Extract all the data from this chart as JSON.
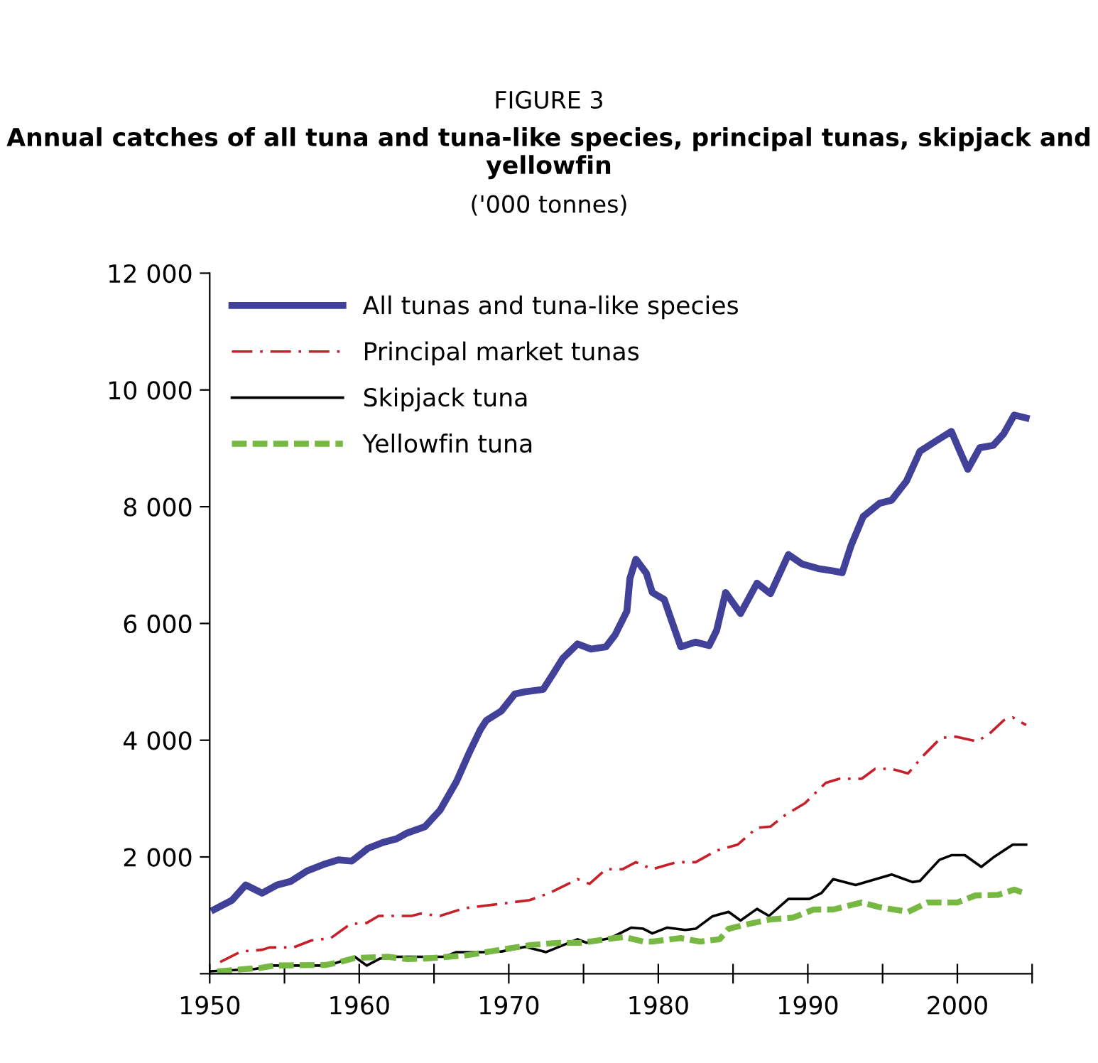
{
  "chart_data": {
    "type": "line",
    "title": "FIGURE 3",
    "subtitle": "Annual catches of all tuna and tuna-like species, principal tunas, skipjack and yellowfin",
    "annotations": [
      "('000 tonnes)"
    ],
    "xlim": [
      1950,
      2005
    ],
    "ylim": [
      0,
      12000
    ],
    "xticks": [
      1950,
      {
        "value": 1955,
        "label": null
      },
      1960,
      {
        "value": 1965,
        "label": null
      },
      1970,
      {
        "value": 1975,
        "label": null
      },
      1980,
      {
        "value": 1985,
        "label": null
      },
      1990,
      {
        "value": 1995,
        "label": null
      },
      2000,
      {
        "value": 2005,
        "label": null
      }
    ],
    "yticks": [
      {
        "value": 0,
        "label": null
      },
      {
        "value": 2000,
        "label": "2 000"
      },
      {
        "value": 4000,
        "label": "4 000"
      },
      {
        "value": 6000,
        "label": "6 000"
      },
      {
        "value": 8000,
        "label": "8 000"
      },
      {
        "value": 10000,
        "label": "10 000"
      },
      {
        "value": 12000,
        "label": "12 000"
      }
    ],
    "grid": false,
    "legend": "top left",
    "marker": "none",
    "series": [
      {
        "name": "All tunas and tuna-like species",
        "color": "#41419a",
        "line_style": "solid",
        "x": [
          1950.3,
          1951.5,
          1952.4,
          1953.5,
          1954.5,
          1955.4,
          1956.5,
          1957.6,
          1958.6,
          1959.5,
          1960.6,
          1961.6,
          1962.5,
          1963.2,
          1964.4,
          1965.4,
          1966.5,
          1967.4,
          1968.1,
          1968.5,
          1969.5,
          1970.4,
          1971.1,
          1972.3,
          1973,
          1973.6,
          1974.6,
          1975.5,
          1976.5,
          1977.1,
          1977.9,
          1978.1,
          1978.5,
          1979.2,
          1979.6,
          1980.4,
          1980.9,
          1981.5,
          1982.5,
          1983.4,
          1983.9,
          1984.5,
          1985.5,
          1986.6,
          1987.5,
          1988.7,
          1989.6,
          1990.7,
          1991.7,
          1992.3,
          1992.9,
          1993.7,
          1994.8,
          1995.6,
          1996.6,
          1997.5,
          1998.6,
          1999.6,
          2000,
          2000.7,
          2001.5,
          2002.4,
          2003.1,
          2003.8,
          2004.6
        ],
        "values": [
          1100,
          1260,
          1520,
          1380,
          1520,
          1580,
          1760,
          1870,
          1950,
          1930,
          2150,
          2250,
          2310,
          2410,
          2520,
          2800,
          3290,
          3810,
          4180,
          4340,
          4500,
          4790,
          4830,
          4870,
          5150,
          5400,
          5650,
          5560,
          5600,
          5800,
          6210,
          6770,
          7100,
          6860,
          6530,
          6410,
          6040,
          5600,
          5680,
          5620,
          5880,
          6530,
          6170,
          6690,
          6510,
          7180,
          7020,
          6940,
          6900,
          6870,
          7340,
          7830,
          8060,
          8110,
          8440,
          8950,
          9130,
          9290,
          9050,
          8640,
          9010,
          9050,
          9250,
          9570,
          9520
        ]
      },
      {
        "name": "Principal market tunas",
        "color": "#c8202a",
        "line_style": "dashdot",
        "x": [
          1950.7,
          1952.1,
          1953.5,
          1954,
          1955.6,
          1956.8,
          1958.1,
          1959.4,
          1960.5,
          1961.3,
          1963.5,
          1964.1,
          1965.4,
          1967,
          1968.9,
          1971.4,
          1972.7,
          1974.6,
          1975.4,
          1976.5,
          1977.6,
          1978.5,
          1979.6,
          1981.2,
          1982.5,
          1983.9,
          1985.3,
          1986.6,
          1987.5,
          1988.5,
          1989.8,
          1991.2,
          1992.1,
          1993.6,
          1994.5,
          1995.6,
          1996.7,
          1997.7,
          1998.9,
          1999.9,
          2001.3,
          2002.1,
          2003.1,
          2003.7,
          2004.6
        ],
        "values": [
          200,
          380,
          410,
          450,
          450,
          570,
          610,
          850,
          870,
          990,
          990,
          1030,
          990,
          1120,
          1180,
          1260,
          1380,
          1620,
          1540,
          1790,
          1790,
          1910,
          1790,
          1910,
          1910,
          2110,
          2210,
          2500,
          2520,
          2720,
          2920,
          3270,
          3340,
          3340,
          3510,
          3510,
          3430,
          3730,
          4040,
          4060,
          3980,
          4100,
          4340,
          4390,
          4260
        ]
      },
      {
        "name": "Skipjack tuna",
        "color": "#000000",
        "line_style": "solid",
        "x": [
          1950,
          1953,
          1954.3,
          1957.5,
          1958.4,
          1959.7,
          1960.5,
          1961.4,
          1962.5,
          1965.7,
          1966.5,
          1968.2,
          1969.5,
          1971.1,
          1972.5,
          1974.6,
          1975.2,
          1976.8,
          1978.2,
          1979,
          1979.6,
          1980.6,
          1981.8,
          1982.5,
          1983.6,
          1984.7,
          1985.5,
          1986.6,
          1987.4,
          1988.7,
          1990.1,
          1990.9,
          1991.7,
          1993.2,
          1995.6,
          1997,
          1997.5,
          1998.8,
          1999.6,
          2000.5,
          2001.6,
          2002.4,
          2003.7,
          2004.6
        ],
        "values": [
          40,
          80,
          140,
          140,
          180,
          290,
          140,
          260,
          290,
          290,
          370,
          370,
          380,
          460,
          370,
          590,
          530,
          610,
          790,
          770,
          690,
          790,
          750,
          770,
          980,
          1060,
          910,
          1110,
          990,
          1280,
          1280,
          1380,
          1620,
          1520,
          1700,
          1570,
          1590,
          1950,
          2030,
          2030,
          1830,
          1990,
          2210,
          2210
        ]
      },
      {
        "name": "Yellowfin tuna",
        "color": "#77b843",
        "line_style": "dashed",
        "x": [
          1950.5,
          1953.4,
          1954.3,
          1957.8,
          1958.7,
          1959.7,
          1961.9,
          1963.2,
          1964.4,
          1967,
          1968.5,
          1971.4,
          1973.3,
          1974.9,
          1976.5,
          1977.7,
          1979,
          1979.6,
          1981.5,
          1982.8,
          1984.1,
          1984.7,
          1986,
          1987.5,
          1989,
          1990.4,
          1991.7,
          1993.6,
          1994.8,
          1996.7,
          1998,
          2000,
          2001.2,
          2002.7,
          2003.8,
          2004.5
        ],
        "values": [
          40,
          100,
          140,
          150,
          200,
          270,
          290,
          250,
          260,
          310,
          370,
          490,
          530,
          530,
          590,
          630,
          550,
          550,
          610,
          550,
          590,
          770,
          850,
          930,
          960,
          1100,
          1100,
          1220,
          1140,
          1060,
          1220,
          1220,
          1340,
          1350,
          1440,
          1380
        ]
      }
    ]
  }
}
